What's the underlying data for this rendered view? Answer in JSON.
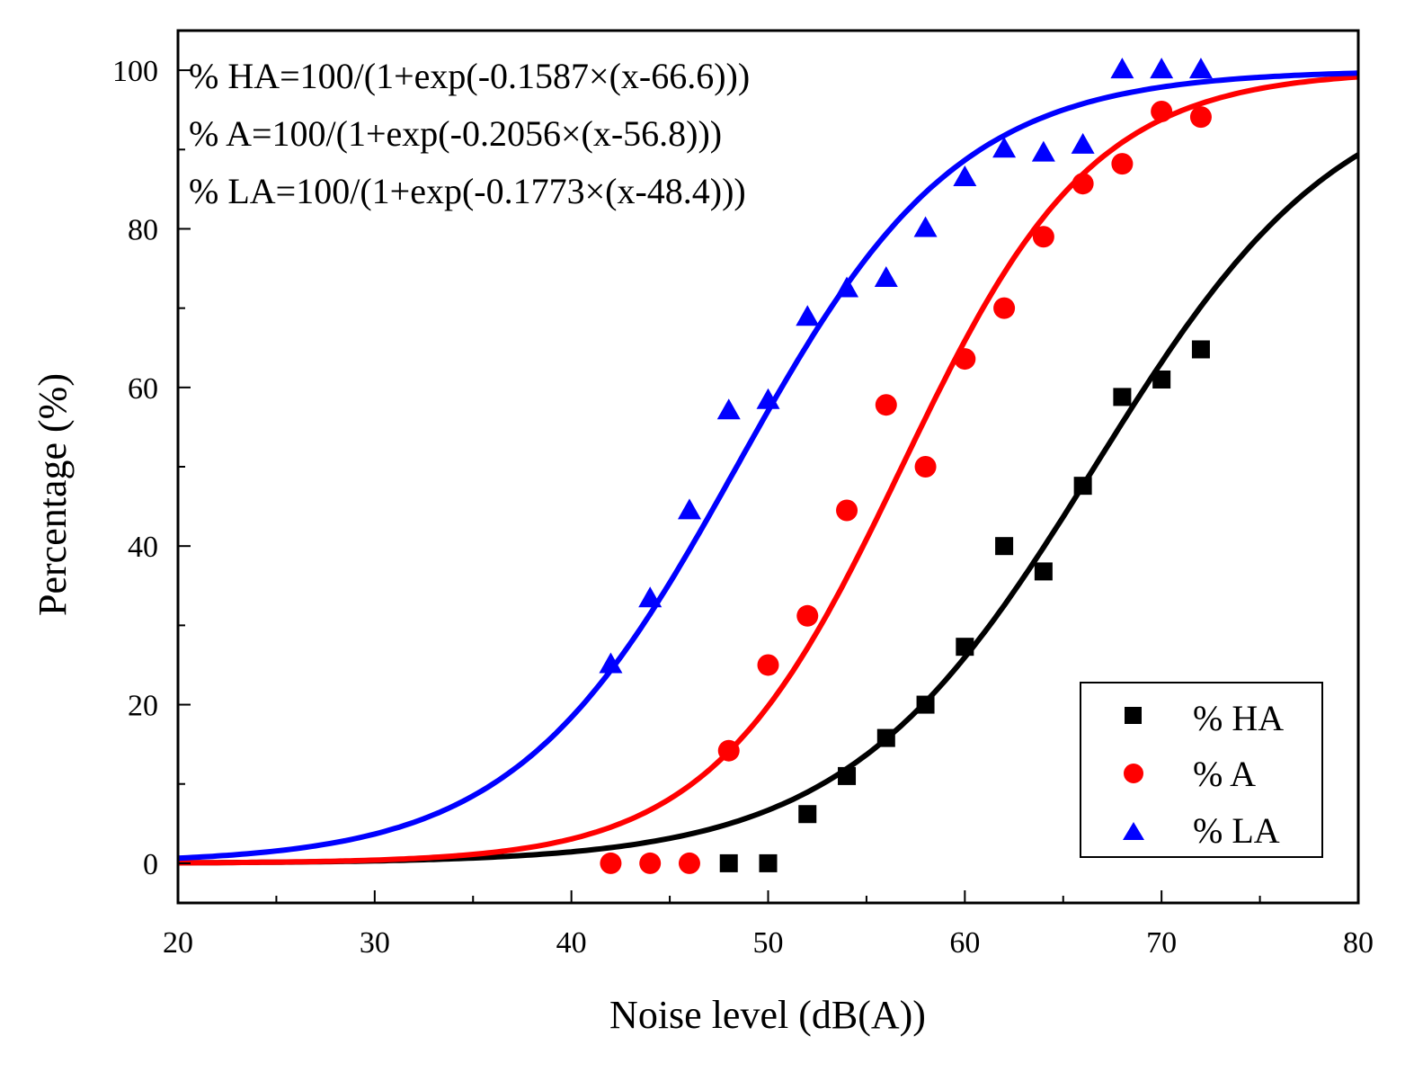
{
  "chart_data": {
    "type": "scatter",
    "xlabel": "Noise level (dB(A))",
    "ylabel": "Percentage (%)",
    "xlim": [
      20,
      80
    ],
    "ylim": [
      -5,
      105
    ],
    "xticks": [
      20,
      30,
      40,
      50,
      60,
      70,
      80
    ],
    "yticks": [
      0,
      20,
      40,
      60,
      80,
      100
    ],
    "grid": false,
    "legend_position": "bottom-right",
    "equations": [
      "% HA=100/(1+exp(-0.1587×(x-66.6)))",
      "% A=100/(1+exp(-0.2056×(x-56.8)))",
      "% LA=100/(1+exp(-0.1773×(x-48.4)))"
    ],
    "series": [
      {
        "name": "% HA",
        "marker": "square",
        "color": "#000000",
        "fit": {
          "k": 0.1587,
          "x0": 66.6
        },
        "points": [
          [
            48,
            0
          ],
          [
            50,
            0
          ],
          [
            52,
            6.2
          ],
          [
            54,
            11
          ],
          [
            56,
            15.8
          ],
          [
            58,
            20
          ],
          [
            60,
            27.3
          ],
          [
            62,
            40
          ],
          [
            64,
            36.8
          ],
          [
            66,
            47.6
          ],
          [
            68,
            58.8
          ],
          [
            70,
            61
          ],
          [
            72,
            64.8
          ]
        ]
      },
      {
        "name": "% A",
        "marker": "circle",
        "color": "#ff0000",
        "fit": {
          "k": 0.2056,
          "x0": 56.8
        },
        "points": [
          [
            42,
            0
          ],
          [
            44,
            0
          ],
          [
            46,
            0
          ],
          [
            48,
            14.2
          ],
          [
            50,
            25
          ],
          [
            52,
            31.2
          ],
          [
            54,
            44.5
          ],
          [
            56,
            57.8
          ],
          [
            58,
            50
          ],
          [
            60,
            63.6
          ],
          [
            62,
            70
          ],
          [
            64,
            79
          ],
          [
            66,
            85.7
          ],
          [
            68,
            88.2
          ],
          [
            70,
            94.8
          ],
          [
            72,
            94.1
          ]
        ]
      },
      {
        "name": "% LA",
        "marker": "triangle",
        "color": "#0000ff",
        "fit": {
          "k": 0.1773,
          "x0": 48.4
        },
        "points": [
          [
            42,
            25
          ],
          [
            44,
            33.3
          ],
          [
            46,
            44.4
          ],
          [
            48,
            57
          ],
          [
            50,
            58.3
          ],
          [
            52,
            68.8
          ],
          [
            54,
            72.4
          ],
          [
            56,
            73.7
          ],
          [
            58,
            80
          ],
          [
            60,
            86.4
          ],
          [
            62,
            90
          ],
          [
            64,
            89.5
          ],
          [
            66,
            90.5
          ],
          [
            68,
            100
          ],
          [
            70,
            100
          ],
          [
            72,
            100
          ]
        ]
      }
    ]
  }
}
